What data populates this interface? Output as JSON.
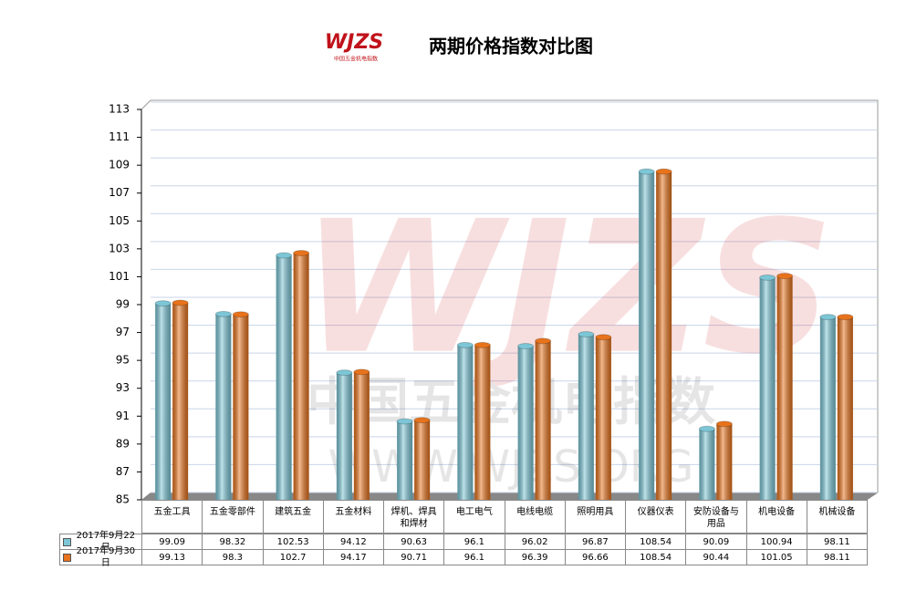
{
  "chart_data": {
    "type": "bar",
    "title": "两期价格指数对比图",
    "logo": {
      "mark": "WJZS",
      "name": "中国五金机电指数",
      "site": "WWW.WJZS.ORG"
    },
    "categories": [
      "五金工具",
      "五金零部件",
      "建筑五金",
      "五金材料",
      "焊机、焊具和焊材",
      "电工电气",
      "电线电缆",
      "照明用具",
      "仪器仪表",
      "安防设备与用品",
      "机电设备",
      "机械设备"
    ],
    "series": [
      {
        "name": "2017年9月22日",
        "color": "#7cc6d6",
        "values": [
          99.09,
          98.32,
          102.53,
          94.12,
          90.63,
          96.1,
          96.02,
          96.87,
          108.54,
          90.09,
          100.94,
          98.11
        ]
      },
      {
        "name": "2017年9月30日",
        "color": "#e8731c",
        "values": [
          99.13,
          98.3,
          102.7,
          94.17,
          90.71,
          96.1,
          96.39,
          96.66,
          108.54,
          90.44,
          101.05,
          98.11
        ]
      }
    ],
    "ylim": [
      85,
      113
    ],
    "yticks": [
      85,
      87,
      89,
      91,
      93,
      95,
      97,
      99,
      101,
      103,
      105,
      107,
      109,
      111,
      113
    ],
    "grid": true
  }
}
